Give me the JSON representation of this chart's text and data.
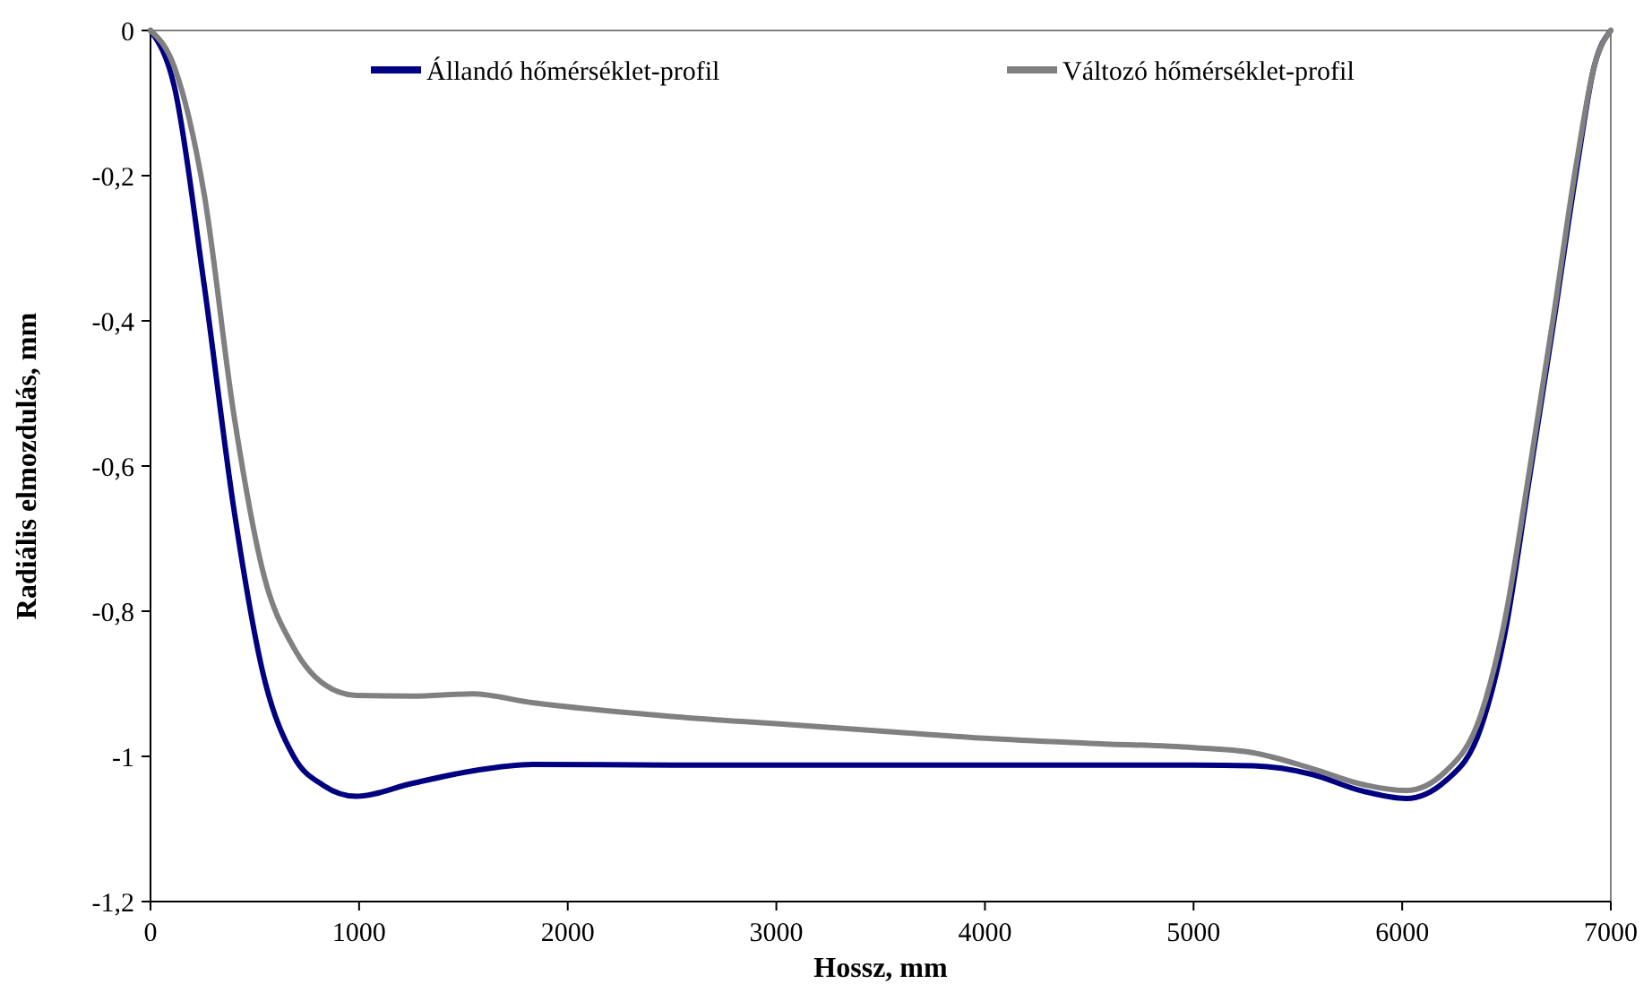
{
  "chart_data": {
    "type": "line",
    "xlabel": "Hossz, mm",
    "ylabel": "Radiális elmozdulás, mm",
    "x": [
      0,
      114,
      257,
      400,
      543,
      686,
      829,
      986,
      1257,
      1543,
      1829,
      2500,
      3000,
      3500,
      4000,
      4500,
      5000,
      5286,
      5571,
      5800,
      6020,
      6207,
      6378,
      6493,
      6608,
      6722,
      6837,
      6920,
      7000
    ],
    "series": [
      {
        "name": "Állandó hőmérséklet-profil",
        "color": "#000080",
        "values": [
          0,
          -0.077,
          -0.35,
          -0.66,
          -0.89,
          -1.0,
          -1.04,
          -1.055,
          -1.037,
          -1.02,
          -1.011,
          -1.012,
          -1.012,
          -1.012,
          -1.012,
          -1.012,
          -1.012,
          -1.013,
          -1.025,
          -1.047,
          -1.058,
          -1.034,
          -0.96,
          -0.83,
          -0.62,
          -0.41,
          -0.19,
          -0.05,
          0
        ]
      },
      {
        "name": "Változó hőmérséklet-profil",
        "color": "#808080",
        "values": [
          0,
          -0.05,
          -0.225,
          -0.53,
          -0.75,
          -0.85,
          -0.9,
          -0.916,
          -0.917,
          -0.914,
          -0.926,
          -0.945,
          -0.955,
          -0.965,
          -0.975,
          -0.982,
          -0.988,
          -0.995,
          -1.017,
          -1.038,
          -1.047,
          -1.021,
          -0.942,
          -0.811,
          -0.61,
          -0.4,
          -0.18,
          -0.05,
          0
        ]
      }
    ],
    "xlim": [
      0,
      7000
    ],
    "xticks": [
      0,
      1000,
      2000,
      3000,
      4000,
      5000,
      6000,
      7000
    ],
    "ylim": [
      -1.2,
      0
    ],
    "yticks": [
      0,
      {
        "value": -0.2,
        "label": "-0,2"
      },
      {
        "value": -0.4,
        "label": "-0,4"
      },
      {
        "value": -0.6,
        "label": "-0,6"
      },
      {
        "value": -0.8,
        "label": "-0,8"
      },
      {
        "value": -1,
        "label": "-1"
      },
      {
        "value": -1.2,
        "label": "-1,2"
      }
    ],
    "legend": "top",
    "grid": false,
    "marker": "none",
    "line_style": "solid"
  }
}
